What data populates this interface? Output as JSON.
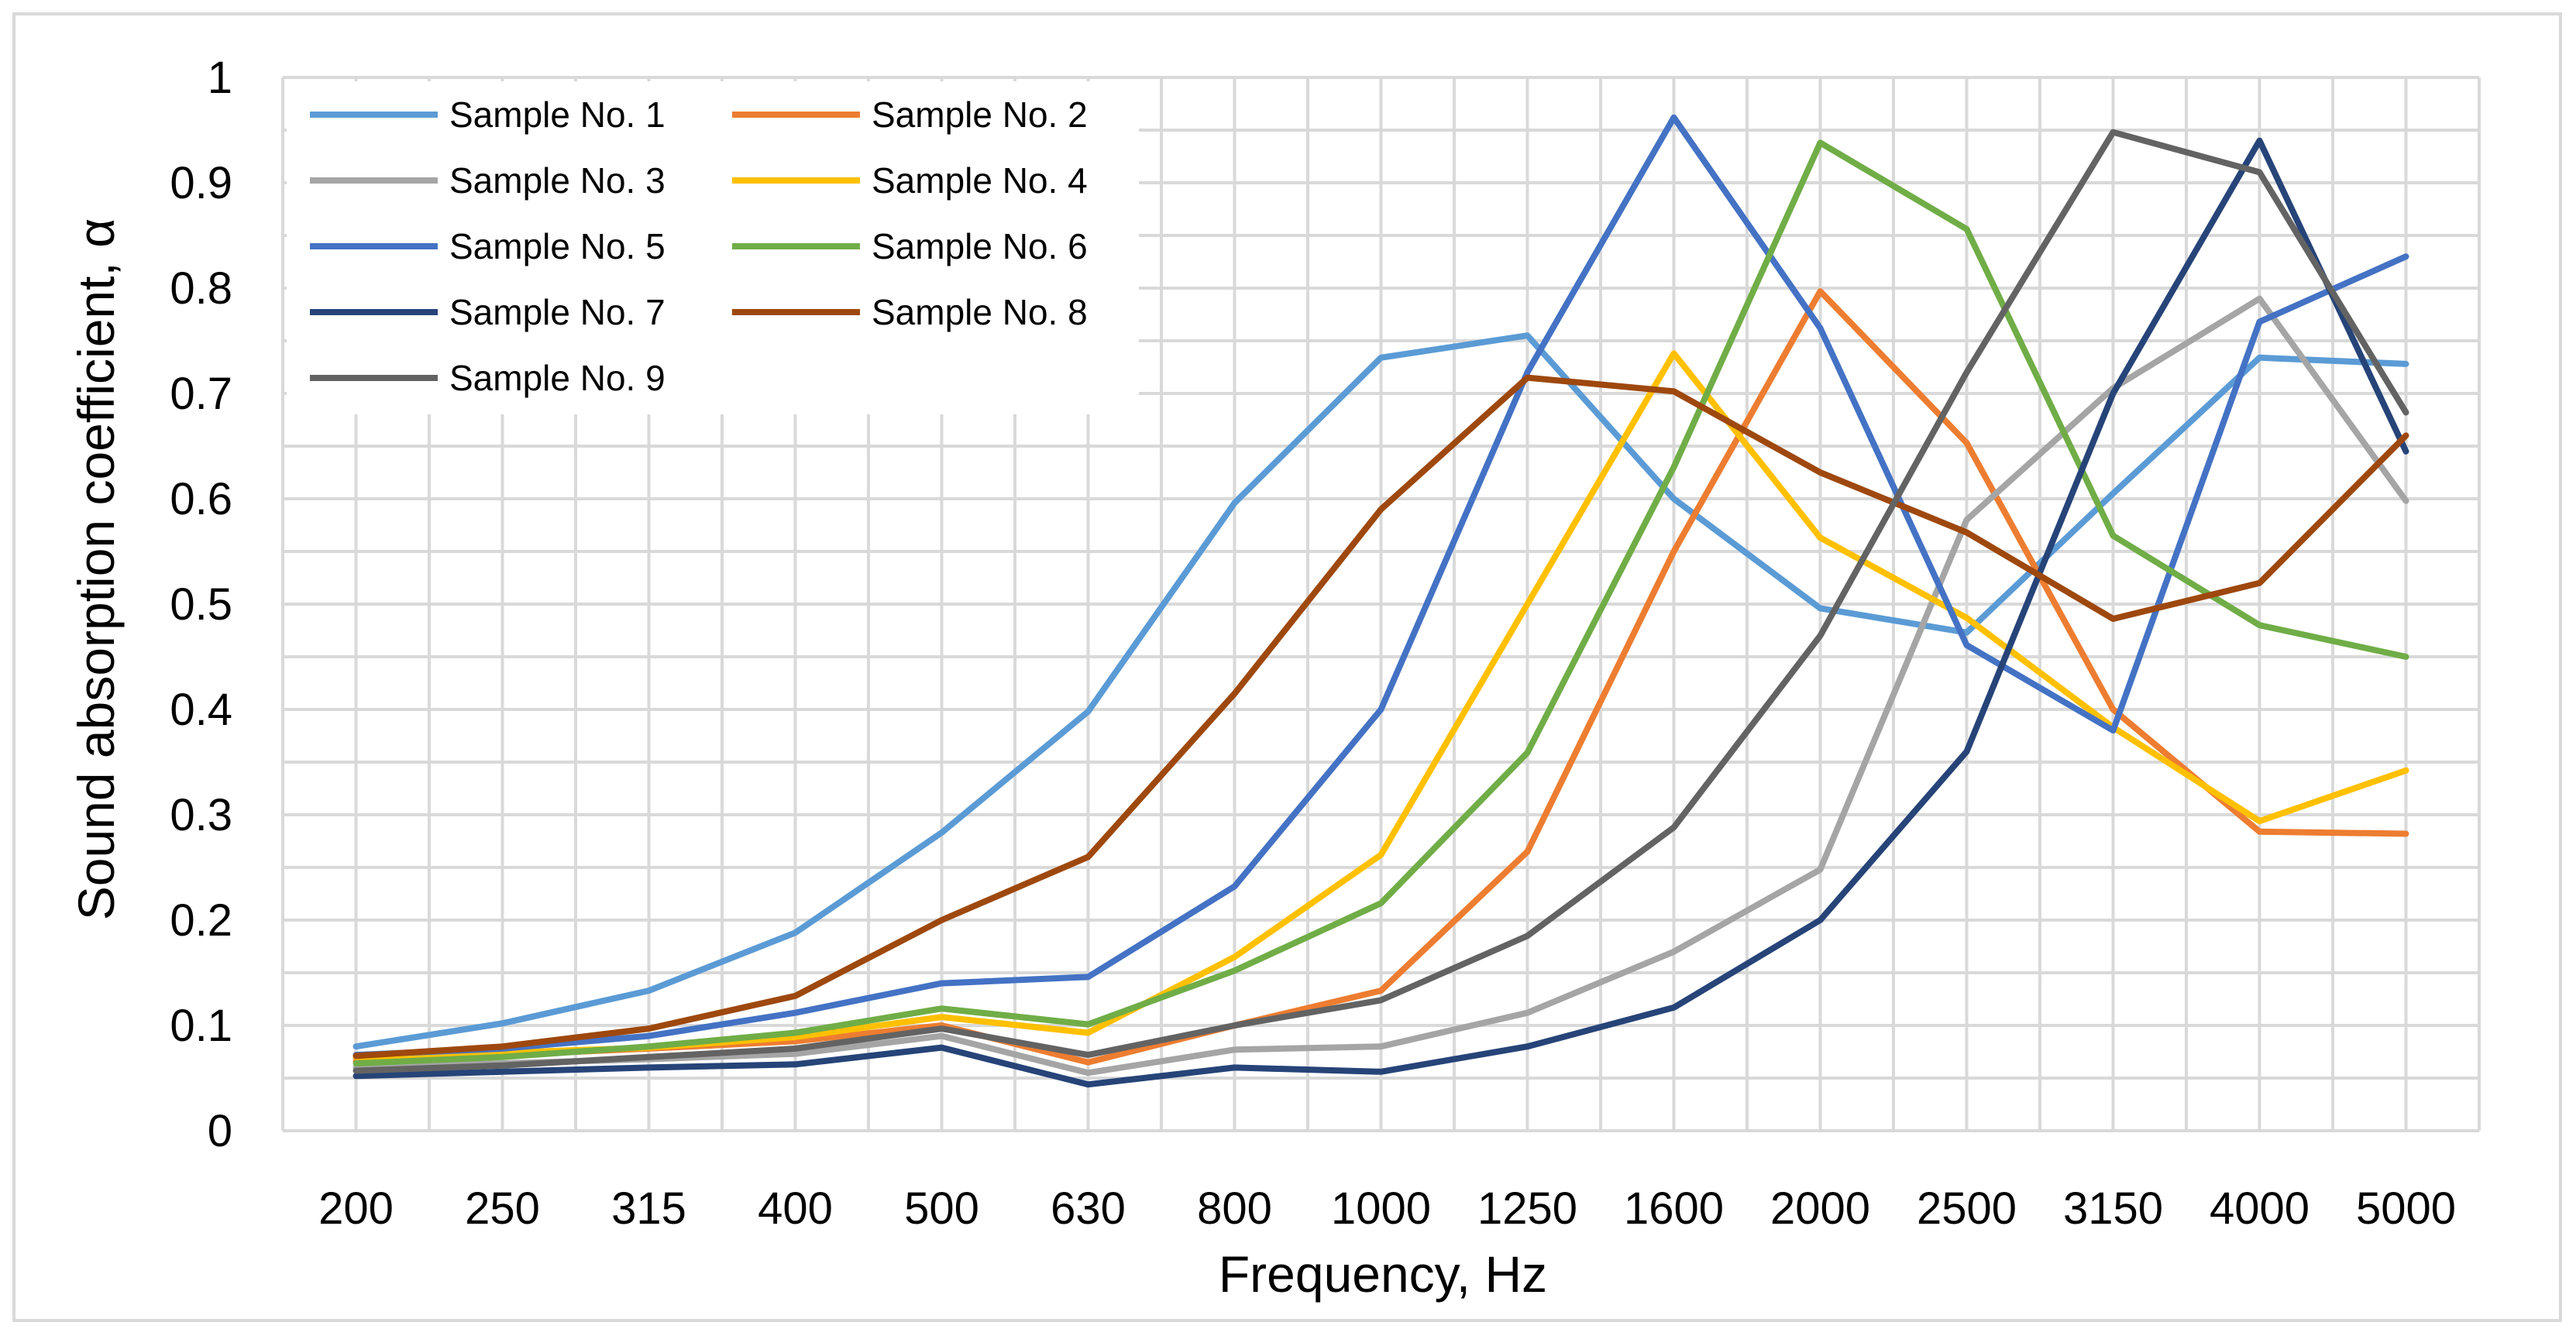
{
  "chart_data": {
    "type": "line",
    "title": "",
    "xlabel": "Frequency, Hz",
    "ylabel": "Sound absorption coefficient, α",
    "ylim": [
      0,
      1
    ],
    "yticks": [
      "0",
      "0.1",
      "0.2",
      "0.3",
      "0.4",
      "0.5",
      "0.6",
      "0.7",
      "0.8",
      "0.9",
      "1"
    ],
    "categories": [
      "200",
      "250",
      "315",
      "400",
      "500",
      "630",
      "800",
      "1000",
      "1250",
      "1600",
      "2000",
      "2500",
      "3150",
      "4000",
      "5000"
    ],
    "grid": "major and minor gridlines",
    "legend_position": "top-left",
    "series": [
      {
        "name": "Sample No. 1",
        "color": "#5b9bd5",
        "values": [
          0.08,
          0.102,
          0.133,
          0.188,
          0.283,
          0.398,
          0.596,
          0.734,
          0.755,
          0.6,
          0.496,
          0.473,
          0.605,
          0.734,
          0.728
        ]
      },
      {
        "name": "Sample No. 2",
        "color": "#ed7d31",
        "values": [
          0.066,
          0.072,
          0.078,
          0.085,
          0.1,
          0.065,
          0.1,
          0.133,
          0.265,
          0.55,
          0.797,
          0.653,
          0.4,
          0.284,
          0.282
        ]
      },
      {
        "name": "Sample No. 3",
        "color": "#a5a5a5",
        "values": [
          0.06,
          0.064,
          0.068,
          0.073,
          0.09,
          0.055,
          0.077,
          0.08,
          0.112,
          0.17,
          0.248,
          0.58,
          0.705,
          0.79,
          0.598
        ]
      },
      {
        "name": "Sample No. 4",
        "color": "#ffc000",
        "values": [
          0.07,
          0.074,
          0.079,
          0.089,
          0.108,
          0.093,
          0.165,
          0.262,
          0.5,
          0.738,
          0.563,
          0.487,
          0.383,
          0.294,
          0.342
        ]
      },
      {
        "name": "Sample No. 5",
        "color": "#4472c4",
        "values": [
          0.072,
          0.078,
          0.09,
          0.112,
          0.14,
          0.146,
          0.232,
          0.4,
          0.72,
          0.962,
          0.762,
          0.461,
          0.38,
          0.768,
          0.83
        ]
      },
      {
        "name": "Sample No. 6",
        "color": "#70ad47",
        "values": [
          0.064,
          0.07,
          0.08,
          0.093,
          0.116,
          0.101,
          0.152,
          0.216,
          0.359,
          0.63,
          0.938,
          0.856,
          0.565,
          0.48,
          0.45
        ]
      },
      {
        "name": "Sample No. 7",
        "color": "#264478",
        "values": [
          0.052,
          0.056,
          0.06,
          0.063,
          0.079,
          0.044,
          0.06,
          0.056,
          0.08,
          0.117,
          0.2,
          0.36,
          0.7,
          0.94,
          0.645
        ]
      },
      {
        "name": "Sample No. 8",
        "color": "#9e480e",
        "values": [
          0.071,
          0.08,
          0.097,
          0.128,
          0.2,
          0.26,
          0.415,
          0.59,
          0.715,
          0.702,
          0.625,
          0.568,
          0.486,
          0.52,
          0.66
        ]
      },
      {
        "name": "Sample No. 9",
        "color": "#636363",
        "values": [
          0.057,
          0.062,
          0.07,
          0.078,
          0.097,
          0.072,
          0.1,
          0.124,
          0.185,
          0.288,
          0.47,
          0.72,
          0.948,
          0.91,
          0.682
        ]
      }
    ]
  }
}
